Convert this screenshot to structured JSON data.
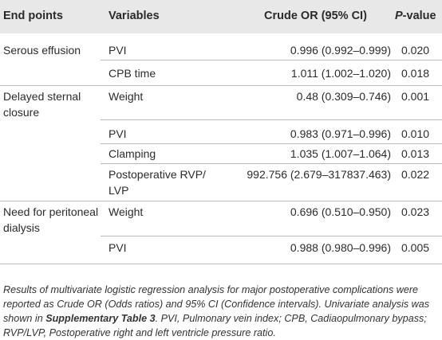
{
  "table": {
    "headers": {
      "end_points": "End points",
      "variables": "Variables",
      "crude_or": "Crude OR (95% CI)",
      "p_letter": "P",
      "p_rest": "-value"
    },
    "rows": [
      {
        "end_point": "Serous effusion",
        "variable": "PVI",
        "or": "0.996 (0.992–0.999)",
        "p": "0.020"
      },
      {
        "end_point": "",
        "variable": "CPB time",
        "or": "1.011 (1.002–1.020)",
        "p": "0.018"
      },
      {
        "end_point": "Delayed sternal closure",
        "variable": "Weight",
        "or": "0.48 (0.309–0.746)",
        "p": "0.001"
      },
      {
        "end_point": "",
        "variable": "PVI",
        "or": "0.983 (0.971–0.996)",
        "p": "0.010"
      },
      {
        "end_point": "",
        "variable": "Clamping",
        "or": "1.035 (1.007–1.064)",
        "p": "0.013"
      },
      {
        "end_point": "",
        "variable": "Postoperative RVP/ LVP",
        "or": "992.756 (2.679–317837.463)",
        "p": "0.022"
      },
      {
        "end_point": "Need for peritoneal dialysis",
        "variable": "Weight",
        "or": "0.696 (0.510–0.950)",
        "p": "0.023"
      },
      {
        "end_point": "",
        "variable": "PVI",
        "or": "0.988 (0.980–0.996)",
        "p": "0.005"
      }
    ]
  },
  "caption": {
    "part1": "Results of multivariate logistic regression analysis for major postoperative complications were reported as Crude OR (Odds ratios) and 95% CI (Confidence intervals). Univariate analysis was shown in ",
    "link": "Supplementary Table 3",
    "part2": ". PVI, Pulmonary vein index; CPB, Cadiaopulmonary bypass; RVP/LVP, Postoperative right and left ventricle pressure ratio."
  }
}
